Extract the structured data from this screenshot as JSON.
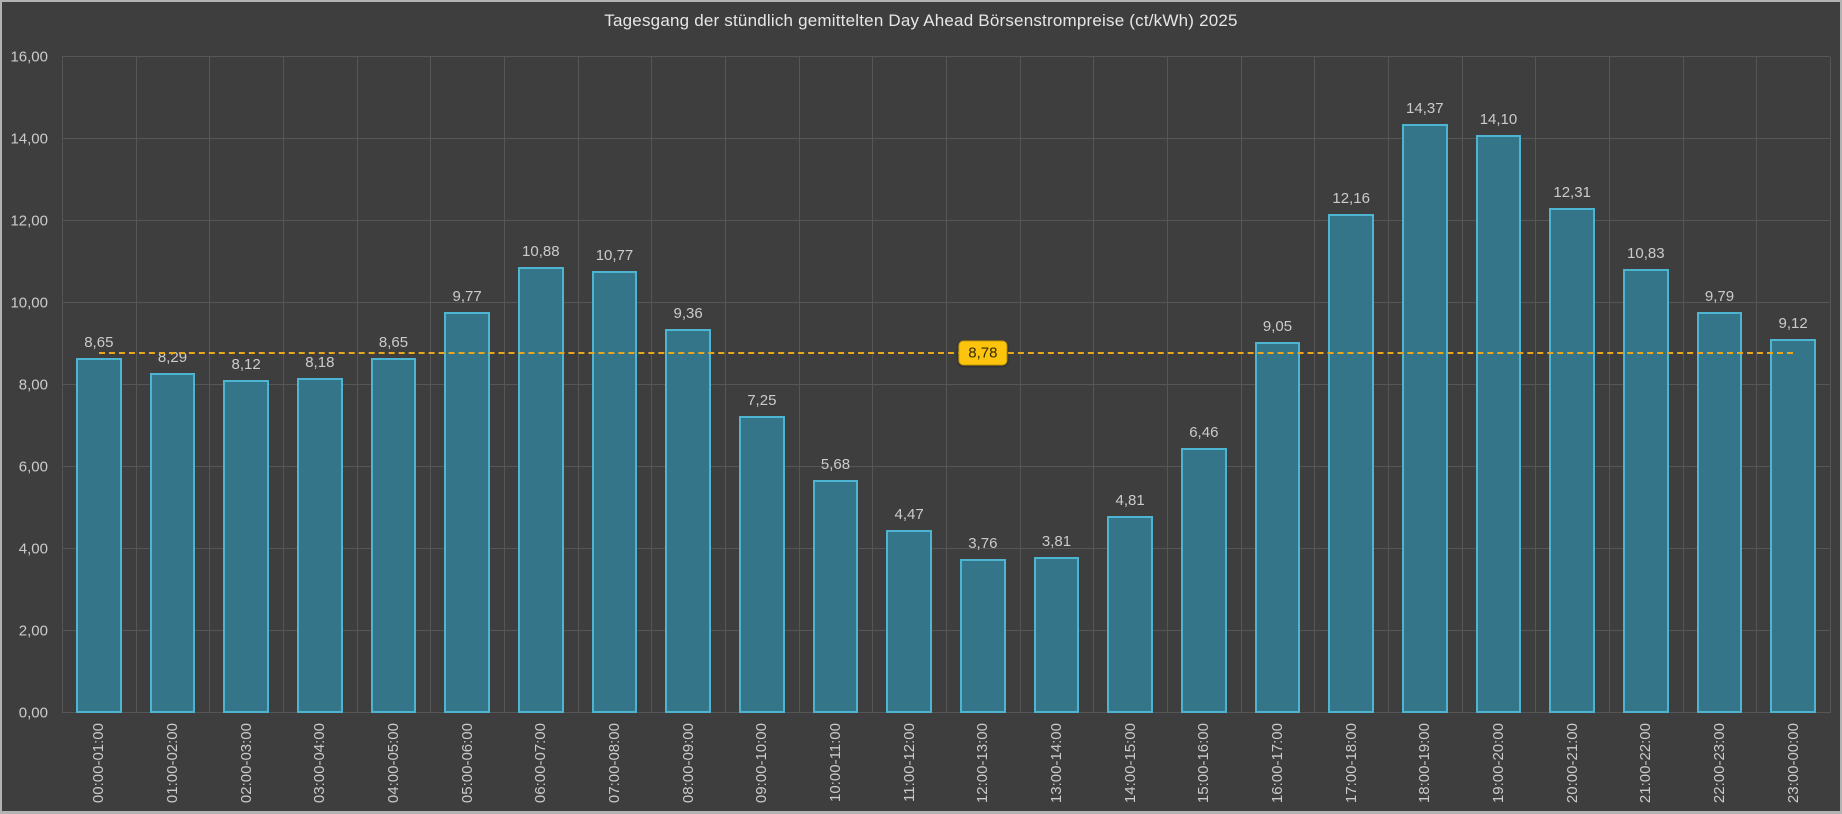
{
  "chart_data": {
    "type": "bar",
    "title": "Tagesgang der stündlich gemittelten Day Ahead Börsenstrompreise (ct/kWh) 2025",
    "categories": [
      "00:00-01:00",
      "01:00-02:00",
      "02:00-03:00",
      "03:00-04:00",
      "04:00-05:00",
      "05:00-06:00",
      "06:00-07:00",
      "07:00-08:00",
      "08:00-09:00",
      "09:00-10:00",
      "10:00-11:00",
      "11:00-12:00",
      "12:00-13:00",
      "13:00-14:00",
      "14:00-15:00",
      "15:00-16:00",
      "16:00-17:00",
      "17:00-18:00",
      "18:00-19:00",
      "19:00-20:00",
      "20:00-21:00",
      "21:00-22:00",
      "22:00-23:00",
      "23:00-00:00"
    ],
    "values": [
      8.65,
      8.29,
      8.12,
      8.18,
      8.65,
      9.77,
      10.88,
      10.77,
      9.36,
      7.25,
      5.68,
      4.47,
      3.76,
      3.81,
      4.81,
      6.46,
      9.05,
      12.16,
      14.37,
      14.1,
      12.31,
      10.83,
      9.79,
      9.12
    ],
    "value_labels": [
      "8,65",
      "8,29",
      "8,12",
      "8,18",
      "8,65",
      "9,77",
      "10,88",
      "10,77",
      "9,36",
      "7,25",
      "5,68",
      "4,47",
      "3,76",
      "3,81",
      "4,81",
      "6,46",
      "9,05",
      "12,16",
      "14,37",
      "14,10",
      "12,31",
      "10,83",
      "9,79",
      "9,12"
    ],
    "average_line": {
      "value": 8.78,
      "label": "8,78",
      "badge_category_index": 12
    },
    "ylim": [
      0,
      16
    ],
    "y_tick_values": [
      0,
      2,
      4,
      6,
      8,
      10,
      12,
      14,
      16
    ],
    "y_tick_labels": [
      "0,00",
      "2,00",
      "4,00",
      "6,00",
      "8,00",
      "10,00",
      "12,00",
      "14,00",
      "16,00"
    ],
    "grid": true,
    "legend": "none",
    "xlabel": "",
    "ylabel": "",
    "colors": {
      "background": "#3e3e3e",
      "gridline": "#565656",
      "bar_fill": "#35758a",
      "bar_border": "#4db4d2",
      "text": "#cbcbcb",
      "title_text": "#e6e6e6",
      "average_line": "#e8a71c",
      "badge_background": "#fdc40d",
      "badge_border": "#c79b00",
      "badge_text": "#332900",
      "frame_border": "#b3b3b3"
    }
  }
}
